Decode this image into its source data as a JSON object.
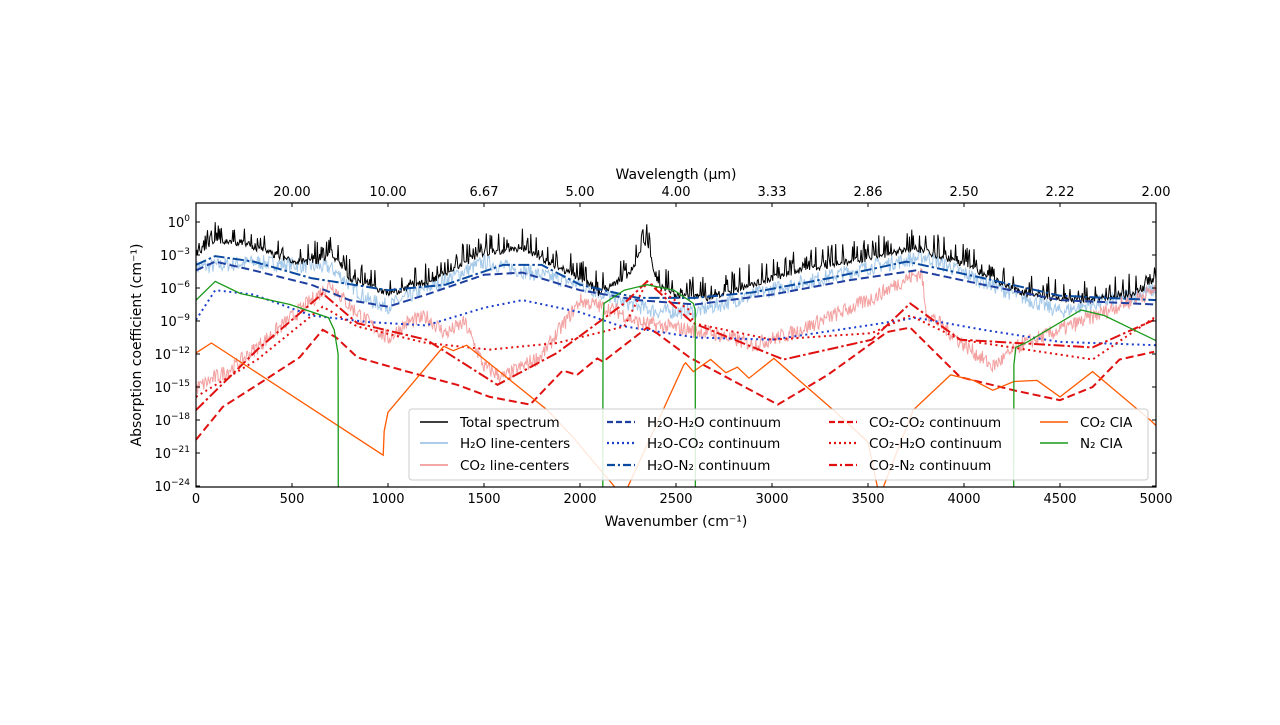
{
  "chart_data": {
    "type": "line",
    "xlabel": "Wavenumber (cm⁻¹)",
    "ylabel": "Absorption coefficient (cm⁻¹)",
    "top_xlabel": "Wavelength (μm)",
    "xlim": [
      0,
      5000
    ],
    "ylim_log10": [
      -24,
      1.7
    ],
    "y_scale": "log",
    "grid": false,
    "legend_position": "lower-right",
    "x_ticks": [
      0,
      500,
      1000,
      1500,
      2000,
      2500,
      3000,
      3500,
      4000,
      4500,
      5000
    ],
    "x_tick_labels": [
      "0",
      "500",
      "1000",
      "1500",
      "2000",
      "2500",
      "3000",
      "3500",
      "4000",
      "4500",
      "5000"
    ],
    "y_ticks_log10": [
      0,
      -3,
      -6,
      -9,
      -12,
      -15,
      -18,
      -21,
      -24
    ],
    "top_ticks_wavenumber": [
      500,
      1000,
      1500,
      2000,
      2500,
      3000,
      3500,
      4000,
      4500,
      5000
    ],
    "top_tick_labels": [
      "20.00",
      "10.00",
      "6.67",
      "5.00",
      "4.00",
      "3.33",
      "2.86",
      "2.50",
      "2.22",
      "2.00"
    ],
    "series": [
      {
        "name": "Total spectrum",
        "color": "#000000",
        "style": "solid",
        "noisy": true,
        "x": [
          0,
          100,
          250,
          500,
          650,
          700,
          800,
          1000,
          1200,
          1500,
          1700,
          2000,
          2100,
          2250,
          2350,
          2400,
          2500,
          2700,
          2900,
          3200,
          3500,
          3750,
          4000,
          4300,
          4600,
          4900,
          5000
        ],
        "log10_y": [
          -2.5,
          -1.5,
          -1.6,
          -3.3,
          -3.3,
          -2.4,
          -4.8,
          -6.2,
          -5.3,
          -2.5,
          -2.1,
          -4.8,
          -6.2,
          -4.5,
          -1.5,
          -5.3,
          -6.4,
          -6.6,
          -5.3,
          -3.9,
          -3.0,
          -2.1,
          -3.5,
          -6.2,
          -6.9,
          -6.2,
          -4.8
        ]
      },
      {
        "name": "H₂O line-centers",
        "color": "#8fbbe3",
        "style": "solid",
        "noisy": true,
        "x": [
          0,
          300,
          700,
          900,
          1000,
          1500,
          2000,
          2200,
          2400,
          2600,
          3000,
          3500,
          3800,
          4200,
          4500,
          5000
        ],
        "log10_y": [
          -4,
          -3.5,
          -4,
          -7,
          -7.5,
          -3.5,
          -5.5,
          -7,
          -8,
          -8,
          -6,
          -4,
          -3,
          -6,
          -8,
          -6
        ]
      },
      {
        "name": "CO₂ line-centers",
        "color": "#f08a8a",
        "style": "solid",
        "noisy": true,
        "x": [
          0,
          200,
          400,
          600,
          700,
          800,
          1000,
          1100,
          1200,
          1300,
          1400,
          1500,
          1600,
          1800,
          2000,
          2200,
          2300,
          2500,
          2700,
          2900,
          3100,
          3300,
          3500,
          3700,
          3780,
          3800,
          4000,
          4150,
          4300,
          4600,
          4800,
          5000
        ],
        "log10_y": [
          -15,
          -13,
          -10,
          -7,
          -5.5,
          -7.5,
          -10.5,
          -9,
          -8.5,
          -10,
          -9,
          -13,
          -14,
          -12,
          -7,
          -8,
          -9,
          -9.5,
          -10,
          -11,
          -10,
          -8.5,
          -7,
          -5,
          -4.5,
          -8,
          -11,
          -13,
          -11,
          -9,
          -7.5,
          -6
        ]
      },
      {
        "name": "H₂O-H₂O continuum",
        "color": "#1f3fa0",
        "style": "dashed",
        "x": [
          0,
          100,
          300,
          600,
          800,
          1000,
          1200,
          1500,
          1700,
          2000,
          2300,
          2600,
          3000,
          3400,
          3750,
          4100,
          4500,
          5000
        ],
        "log10_y": [
          -4.4,
          -3.6,
          -4.4,
          -5.7,
          -7.1,
          -7.7,
          -6.6,
          -4.8,
          -4.6,
          -6.2,
          -7.1,
          -7.5,
          -6.6,
          -5.3,
          -4.4,
          -5.7,
          -7.1,
          -7.5
        ]
      },
      {
        "name": "H₂O-CO₂ continuum",
        "color": "#1a3fcf",
        "style": "dotted",
        "x": [
          0,
          100,
          300,
          600,
          900,
          1200,
          1500,
          1700,
          2000,
          2200,
          2600,
          3000,
          3500,
          3750,
          4100,
          4500,
          5000
        ],
        "log10_y": [
          -8.9,
          -6.2,
          -6.6,
          -8.5,
          -9.1,
          -9.4,
          -7.8,
          -7.1,
          -8.2,
          -9.4,
          -10.5,
          -10.7,
          -9.4,
          -8.7,
          -9.8,
          -10.9,
          -11.2
        ]
      },
      {
        "name": "H₂O-N₂ continuum",
        "color": "#0a4aa0",
        "style": "dashdot",
        "x": [
          0,
          100,
          300,
          600,
          1000,
          1300,
          1600,
          1800,
          2000,
          2300,
          2600,
          2900,
          3300,
          3700,
          4100,
          4500,
          5000
        ],
        "log10_y": [
          -3.9,
          -3.1,
          -3.6,
          -5.1,
          -6.2,
          -5.7,
          -3.9,
          -3.9,
          -5.7,
          -6.9,
          -6.9,
          -6.4,
          -5.1,
          -3.6,
          -5.1,
          -6.7,
          -7.1
        ]
      },
      {
        "name": "CO₂-CO₂ continuum",
        "color": "#e01010",
        "style": "dashed",
        "x": [
          0,
          140,
          320,
          540,
          660,
          730,
          840,
          1100,
          1360,
          1530,
          1740,
          1910,
          1985,
          2090,
          2120,
          2350,
          2400,
          2570,
          2590,
          3030,
          3290,
          3600,
          3720,
          3980,
          4260,
          4500,
          4670,
          4810,
          4990
        ],
        "log10_y": [
          -19.8,
          -16.8,
          -14.8,
          -12.3,
          -9.8,
          -10.5,
          -12.3,
          -13.6,
          -14.8,
          -15.9,
          -16.6,
          -13.5,
          -13.9,
          -12.4,
          -12.7,
          -9.6,
          -10.1,
          -12.3,
          -12.5,
          -16.6,
          -13.9,
          -10,
          -9.6,
          -14.1,
          -15.3,
          -16.2,
          -15,
          -12.5,
          -11.8
        ]
      },
      {
        "name": "CO₂-H₂O continuum",
        "color": "#e01010",
        "style": "dotted",
        "x": [
          0,
          320,
          660,
          840,
          1200,
          1530,
          1880,
          2230,
          2350,
          2570,
          2590,
          3000,
          3520,
          3720,
          3980,
          4670,
          4990
        ],
        "log10_y": [
          -15.9,
          -12.5,
          -7.7,
          -9.5,
          -11,
          -11.6,
          -11,
          -9.5,
          -5.4,
          -8,
          -9.2,
          -10.7,
          -10.1,
          -8.5,
          -10.7,
          -12.5,
          -8.7
        ]
      },
      {
        "name": "CO₂-N₂ continuum",
        "color": "#e01010",
        "style": "dashdot",
        "x": [
          0,
          320,
          660,
          840,
          1200,
          1570,
          1880,
          2230,
          2350,
          2570,
          2590,
          3060,
          3520,
          3720,
          3980,
          4670,
          4990
        ],
        "log10_y": [
          -17.1,
          -11.6,
          -6.5,
          -9.2,
          -10.7,
          -14.8,
          -11.9,
          -7.4,
          -5.4,
          -8.9,
          -9.2,
          -12.5,
          -10.7,
          -7.4,
          -10.7,
          -11.4,
          -8.9
        ]
      },
      {
        "name": "CO₂ CIA",
        "color": "#ff5a00",
        "style": "solid",
        "x": [
          0,
          80,
          975,
          980,
          1000,
          1290,
          1340,
          1410,
          1830,
          1960,
          2225,
          2540,
          2550,
          2590,
          2680,
          2760,
          2820,
          2880,
          3010,
          3320,
          3500,
          3560,
          3735,
          3930,
          4050,
          4150,
          4260,
          4380,
          4500,
          4670,
          4970,
          5000
        ],
        "log10_y": [
          -11.9,
          -11,
          -21.2,
          -19,
          -17.3,
          -11.3,
          -11.7,
          -11.2,
          -17.1,
          -19.5,
          -25,
          -13,
          -12.8,
          -13.6,
          -12.5,
          -13.7,
          -13.2,
          -14.2,
          -12.4,
          -17.1,
          -20,
          -25,
          -17.1,
          -13.9,
          -14.4,
          -15.3,
          -14.5,
          -14.4,
          -15.9,
          -13.6,
          -18,
          -18.5
        ]
      },
      {
        "name": "N₂ CIA",
        "color": "#1a9a1a",
        "style": "solid",
        "x": [
          0,
          100,
          230,
          490,
          690,
          720,
          740,
          741,
          2119,
          2120,
          2125,
          2230,
          2350,
          2490,
          2590,
          2600,
          2601,
          4259,
          4260,
          4270,
          4330,
          4610,
          4730,
          4990,
          5000
        ],
        "log10_y": [
          -7.1,
          -5.4,
          -6.5,
          -7.5,
          -8.7,
          -9.8,
          -12,
          -25,
          -25,
          -9,
          -7.4,
          -6.2,
          -5.7,
          -6.2,
          -7.4,
          -8,
          -25,
          -25,
          -13,
          -11.4,
          -10.9,
          -8,
          -8.5,
          -10.7,
          -10.8
        ]
      }
    ],
    "legend": [
      [
        "Total spectrum",
        "H₂O line-centers",
        "CO₂ line-centers"
      ],
      [
        "H₂O-H₂O continuum",
        "H₂O-CO₂ continuum",
        "H₂O-N₂ continuum"
      ],
      [
        "CO₂-CO₂ continuum",
        "CO₂-H₂O continuum",
        "CO₂-N₂ continuum"
      ],
      [
        "CO₂ CIA",
        "N₂ CIA"
      ]
    ]
  }
}
